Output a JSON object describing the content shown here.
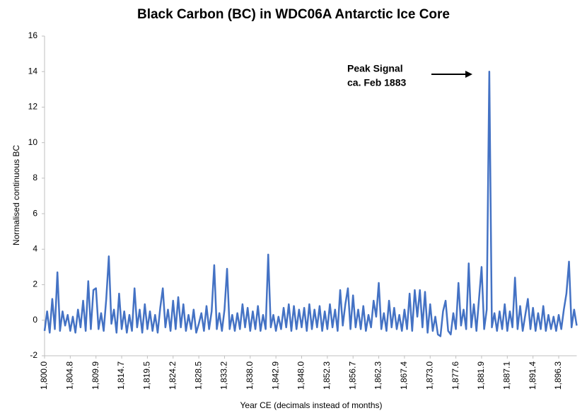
{
  "chart_data": {
    "type": "line",
    "title": "Black Carbon (BC) in WDC06A Antarctic Ice Core",
    "x_label": "Year CE (decimals instead of months)",
    "y_label": "Normalised continuous BC",
    "annotation": [
      "Peak Signal",
      "ca. Feb 1883"
    ],
    "ylim": [
      -2,
      16
    ],
    "yticks": [
      -2,
      0,
      2,
      4,
      6,
      8,
      10,
      12,
      14,
      16
    ],
    "grid": false,
    "categories": [
      "1,800.0",
      null,
      null,
      null,
      null,
      null,
      null,
      null,
      null,
      null,
      "1,804.8",
      null,
      null,
      null,
      null,
      null,
      null,
      null,
      null,
      null,
      "1,809.9",
      null,
      null,
      null,
      null,
      null,
      null,
      null,
      null,
      null,
      "1,814.7",
      null,
      null,
      null,
      null,
      null,
      null,
      null,
      null,
      null,
      "1,819.5",
      null,
      null,
      null,
      null,
      null,
      null,
      null,
      null,
      null,
      "1,824.2",
      null,
      null,
      null,
      null,
      null,
      null,
      null,
      null,
      null,
      "1,828.5",
      null,
      null,
      null,
      null,
      null,
      null,
      null,
      null,
      null,
      "1,833.2",
      null,
      null,
      null,
      null,
      null,
      null,
      null,
      null,
      null,
      "1,838.0",
      null,
      null,
      null,
      null,
      null,
      null,
      null,
      null,
      null,
      "1,842.9",
      null,
      null,
      null,
      null,
      null,
      null,
      null,
      null,
      null,
      "1,848.0",
      null,
      null,
      null,
      null,
      null,
      null,
      null,
      null,
      null,
      "1,852.3",
      null,
      null,
      null,
      null,
      null,
      null,
      null,
      null,
      null,
      "1,856.7",
      null,
      null,
      null,
      null,
      null,
      null,
      null,
      null,
      null,
      "1,862.3",
      null,
      null,
      null,
      null,
      null,
      null,
      null,
      null,
      null,
      "1,867.4",
      null,
      null,
      null,
      null,
      null,
      null,
      null,
      null,
      null,
      "1,873.0",
      null,
      null,
      null,
      null,
      null,
      null,
      null,
      null,
      null,
      "1,877.6",
      null,
      null,
      null,
      null,
      null,
      null,
      null,
      null,
      null,
      "1,881.9",
      null,
      null,
      null,
      null,
      null,
      null,
      null,
      null,
      null,
      "1,887.1",
      null,
      null,
      null,
      null,
      null,
      null,
      null,
      null,
      null,
      "1,891.4",
      null,
      null,
      null,
      null,
      null,
      null,
      null,
      null,
      null,
      "1,896.3",
      null,
      null,
      null,
      null,
      null,
      null,
      null
    ],
    "series": [
      {
        "color": "#4472c4",
        "values": [
          -0.6,
          0.5,
          -0.7,
          1.2,
          -0.5,
          2.7,
          -0.6,
          0.5,
          -0.3,
          0.3,
          -0.6,
          0.2,
          -0.7,
          0.6,
          -0.4,
          1.1,
          -0.6,
          2.2,
          -0.5,
          1.7,
          1.8,
          -0.5,
          0.4,
          -0.6,
          1.2,
          3.6,
          -0.2,
          0.6,
          -0.7,
          1.5,
          -0.5,
          0.5,
          -0.7,
          0.3,
          -0.6,
          1.8,
          -0.4,
          0.6,
          -0.7,
          0.9,
          -0.5,
          0.5,
          -0.6,
          0.3,
          -0.7,
          0.7,
          1.8,
          -0.4,
          0.6,
          -0.6,
          1.1,
          -0.5,
          1.3,
          -0.4,
          0.9,
          -0.6,
          0.3,
          -0.5,
          0.6,
          -0.7,
          -0.2,
          0.4,
          -0.6,
          0.8,
          -0.5,
          0.5,
          3.1,
          -0.5,
          0.4,
          -0.6,
          0.6,
          2.9,
          -0.5,
          0.3,
          -0.6,
          0.4,
          -0.5,
          0.9,
          -0.4,
          0.7,
          -0.6,
          0.5,
          -0.5,
          0.8,
          -0.6,
          0.3,
          -0.5,
          3.7,
          -0.4,
          0.3,
          -0.6,
          0.2,
          -0.5,
          0.7,
          -0.4,
          0.9,
          -0.6,
          0.8,
          -0.5,
          0.6,
          -0.4,
          0.7,
          -0.6,
          0.9,
          -0.5,
          0.6,
          -0.4,
          0.8,
          -0.6,
          0.5,
          -0.5,
          0.9,
          -0.4,
          0.6,
          -0.6,
          1.7,
          -0.3,
          0.9,
          1.8,
          -0.5,
          1.4,
          -0.4,
          0.6,
          -0.5,
          0.8,
          -0.6,
          0.3,
          -0.4,
          1.1,
          0.2,
          2.1,
          -0.5,
          0.4,
          -0.6,
          1.1,
          -0.4,
          0.7,
          -0.5,
          0.3,
          -0.6,
          0.6,
          -0.5,
          1.5,
          -0.6,
          1.7,
          0.2,
          1.7,
          -0.4,
          1.6,
          -0.7,
          0.9,
          -0.6,
          0.2,
          -0.8,
          -0.9,
          0.5,
          1.1,
          -0.6,
          -0.8,
          0.4,
          -0.5,
          2.1,
          -0.3,
          0.6,
          -0.5,
          3.2,
          -0.4,
          0.9,
          -0.6,
          1.2,
          3.0,
          -0.5,
          0.6,
          14.0,
          -0.4,
          0.4,
          -0.6,
          0.5,
          -0.5,
          0.9,
          -0.6,
          0.5,
          -0.4,
          2.4,
          -0.5,
          0.8,
          -0.6,
          0.3,
          1.2,
          -0.5,
          0.7,
          -0.6,
          0.4,
          -0.5,
          0.8,
          -0.6,
          0.3,
          -0.5,
          0.2,
          -0.6,
          0.3,
          -0.5,
          0.6,
          1.5,
          3.3,
          -0.4,
          0.6,
          -0.3
        ]
      }
    ]
  }
}
